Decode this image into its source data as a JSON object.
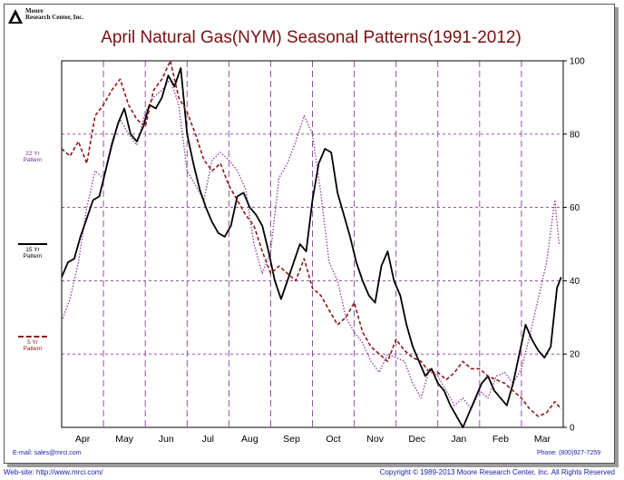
{
  "logo": {
    "line1": "Moore",
    "line2": "Research Center, Inc."
  },
  "legend": {
    "yr22_line1": "22 Yr",
    "yr22_line2": "Pattern",
    "yr15_line1": "15 Yr",
    "yr15_line2": "Pattern",
    "yr5_line1": "5 Yr",
    "yr5_line2": "Pattern"
  },
  "footer": {
    "email": "E-mail: sales@mrci.com",
    "phone": "Phone: (800)927-7259",
    "web": "Web-site: http://www.mrci.com/",
    "copyright": "Copyright © 1989-2013 Moore Research Center, Inc. All Rights Reserved"
  },
  "colors": {
    "title": "#7a1010",
    "pattern22": "#8a3c9a",
    "pattern15": "#000000",
    "pattern5": "#8b1a1a",
    "grid": "#8a3c9a"
  },
  "chart_data": {
    "type": "line",
    "title": "April Natural Gas(NYM) Seasonal Patterns(1991-2012)",
    "categories": [
      "Apr",
      "May",
      "Jun",
      "Jul",
      "Aug",
      "Sep",
      "Oct",
      "Nov",
      "Dec",
      "Jan",
      "Feb",
      "Mar"
    ],
    "yticks": [
      0,
      20,
      40,
      60,
      80,
      100
    ],
    "ylim": [
      0,
      100
    ],
    "xlim": [
      0,
      12
    ],
    "grid": true,
    "y_axis_side": "right",
    "series": [
      {
        "name": "22 Yr Pattern",
        "style": "dotted",
        "x": [
          0,
          0.2,
          0.4,
          0.6,
          0.8,
          1.0,
          1.2,
          1.4,
          1.6,
          1.8,
          2.0,
          2.2,
          2.4,
          2.6,
          2.8,
          3.0,
          3.2,
          3.4,
          3.6,
          3.8,
          4.0,
          4.2,
          4.4,
          4.6,
          4.8,
          5.0,
          5.2,
          5.4,
          5.6,
          5.8,
          6.0,
          6.2,
          6.4,
          6.6,
          6.8,
          7.0,
          7.2,
          7.4,
          7.6,
          7.8,
          8.0,
          8.2,
          8.4,
          8.6,
          8.8,
          9.0,
          9.2,
          9.4,
          9.6,
          9.8,
          10.0,
          10.2,
          10.4,
          10.6,
          10.8,
          11.0,
          11.2,
          11.4,
          11.6,
          11.8,
          11.9
        ],
        "values": [
          29,
          35,
          45,
          60,
          70,
          68,
          78,
          84,
          80,
          77,
          86,
          90,
          92,
          95,
          88,
          70,
          66,
          62,
          73,
          75,
          73,
          70,
          65,
          50,
          42,
          48,
          68,
          72,
          78,
          85,
          80,
          64,
          45,
          40,
          30,
          26,
          23,
          18,
          15,
          20,
          19,
          18,
          12,
          8,
          16,
          14,
          10,
          6,
          8,
          5,
          10,
          8,
          14,
          15,
          12,
          16,
          25,
          35,
          45,
          62,
          50
        ]
      },
      {
        "name": "15 Yr Pattern",
        "style": "solid",
        "x": [
          0,
          0.15,
          0.3,
          0.45,
          0.6,
          0.75,
          0.9,
          1.05,
          1.2,
          1.35,
          1.5,
          1.65,
          1.8,
          1.95,
          2.1,
          2.25,
          2.4,
          2.55,
          2.7,
          2.85,
          3.0,
          3.15,
          3.3,
          3.45,
          3.6,
          3.75,
          3.9,
          4.05,
          4.2,
          4.35,
          4.5,
          4.65,
          4.8,
          4.95,
          5.1,
          5.25,
          5.4,
          5.55,
          5.7,
          5.85,
          6.0,
          6.15,
          6.3,
          6.45,
          6.6,
          6.75,
          6.9,
          7.05,
          7.2,
          7.35,
          7.5,
          7.65,
          7.8,
          7.95,
          8.1,
          8.25,
          8.4,
          8.55,
          8.7,
          8.85,
          9.0,
          9.15,
          9.3,
          9.45,
          9.6,
          9.75,
          9.9,
          10.05,
          10.2,
          10.35,
          10.5,
          10.65,
          10.8,
          10.95,
          11.1,
          11.25,
          11.4,
          11.55,
          11.7,
          11.85,
          11.95
        ],
        "values": [
          41,
          45,
          46,
          52,
          57,
          62,
          63,
          70,
          77,
          83,
          87,
          80,
          78,
          82,
          88,
          87,
          90,
          96,
          93,
          98,
          80,
          72,
          65,
          60,
          56,
          53,
          52,
          55,
          63,
          64,
          60,
          58,
          55,
          48,
          40,
          35,
          40,
          45,
          50,
          48,
          62,
          72,
          76,
          75,
          64,
          58,
          52,
          45,
          40,
          36,
          34,
          44,
          48,
          40,
          36,
          28,
          22,
          18,
          14,
          16,
          12,
          10,
          6,
          3,
          0,
          4,
          8,
          12,
          14,
          10,
          8,
          6,
          12,
          20,
          28,
          24,
          21,
          19,
          22,
          38,
          41
        ]
      },
      {
        "name": "5 Yr Pattern",
        "style": "dashed",
        "x": [
          0,
          0.2,
          0.4,
          0.6,
          0.8,
          1.0,
          1.2,
          1.4,
          1.6,
          1.8,
          2.0,
          2.2,
          2.4,
          2.6,
          2.8,
          3.0,
          3.2,
          3.4,
          3.6,
          3.8,
          4.0,
          4.2,
          4.4,
          4.6,
          4.8,
          5.0,
          5.2,
          5.4,
          5.6,
          5.8,
          6.0,
          6.2,
          6.4,
          6.6,
          6.8,
          7.0,
          7.2,
          7.4,
          7.6,
          7.8,
          8.0,
          8.2,
          8.4,
          8.6,
          8.8,
          9.0,
          9.2,
          9.4,
          9.6,
          9.8,
          10.0,
          10.2,
          10.4,
          10.6,
          10.8,
          11.0,
          11.2,
          11.4,
          11.6,
          11.8,
          11.95
        ],
        "values": [
          76,
          74,
          78,
          72,
          85,
          88,
          92,
          95,
          88,
          84,
          82,
          92,
          95,
          100,
          90,
          86,
          80,
          73,
          70,
          72,
          66,
          62,
          58,
          55,
          48,
          42,
          44,
          42,
          40,
          46,
          38,
          36,
          32,
          28,
          30,
          34,
          26,
          22,
          20,
          18,
          24,
          21,
          19,
          18,
          15,
          15,
          13,
          15,
          18,
          16,
          16,
          14,
          13,
          12,
          10,
          8,
          5,
          3,
          4,
          7,
          5
        ]
      }
    ]
  }
}
